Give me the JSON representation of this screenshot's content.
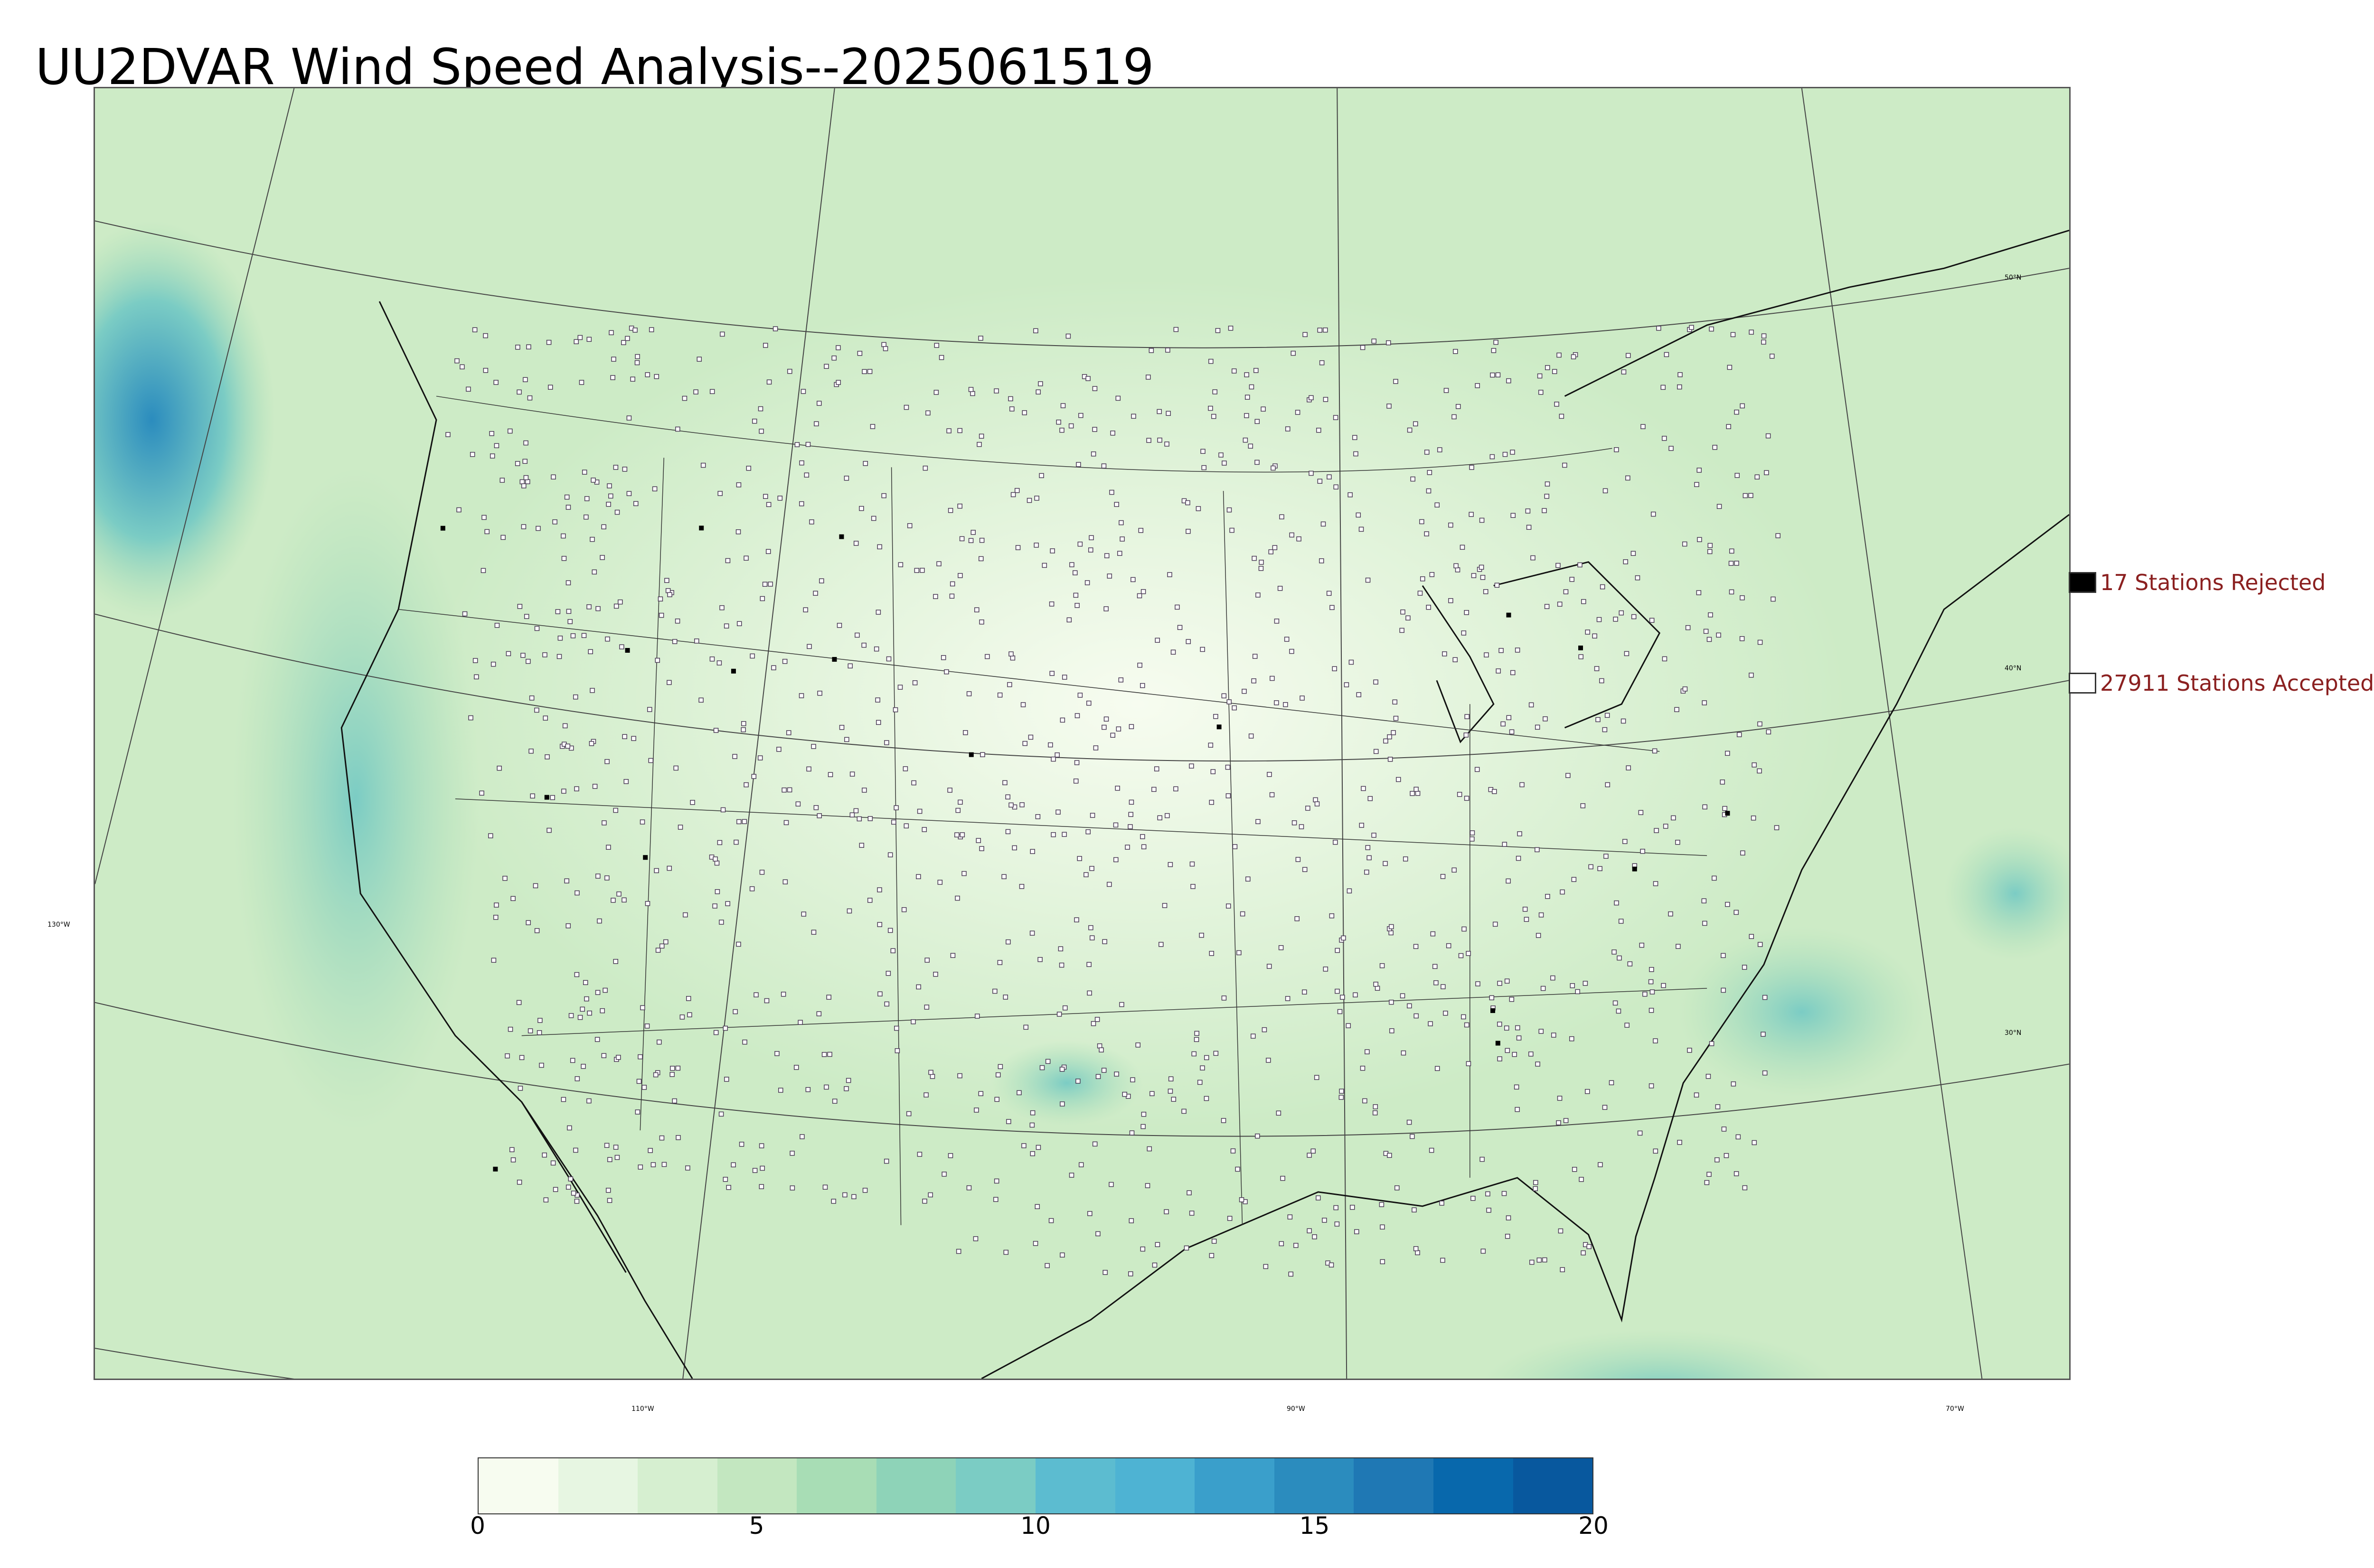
{
  "title": "UU2DVAR Wind Speed Analysis--2025061519",
  "legend": {
    "rejected": {
      "label": "17 Stations Rejected",
      "color": "#000000"
    },
    "accepted": {
      "label": "27911 Stations Accepted",
      "color": "#ffffff"
    }
  },
  "ticks": {
    "lat_50": "50°N",
    "lat_40": "40°N",
    "lat_30": "30°N",
    "lon_130": "130°W",
    "lon_110": "110°W",
    "lon_90": "90°W",
    "lon_70": "70°W"
  },
  "colorbar": {
    "min": 0,
    "max": 20,
    "tick_labels": [
      "0",
      "5",
      "10",
      "15",
      "20"
    ],
    "colors": [
      "#f7fcf0",
      "#e7f6e2",
      "#d6efd0",
      "#c3e7c0",
      "#a8ddb5",
      "#8ed3b8",
      "#7bccc4",
      "#5cbcd0",
      "#4eb3d3",
      "#3a9fcb",
      "#2b8cbe",
      "#1f78b4",
      "#0868ac",
      "#08589e"
    ]
  },
  "icons": {
    "station_accepted": "open-square-marker",
    "station_rejected": "filled-square-marker"
  }
}
